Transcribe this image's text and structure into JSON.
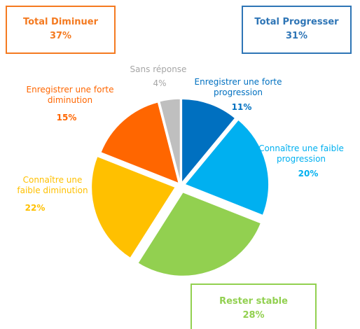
{
  "chart_data": {
    "type": "pie",
    "categories": [
      "Enregistrer une forte progression",
      "Connaître une faible progression",
      "Rester stable",
      "Connaître une faible diminution",
      "Enregistrer une forte diminution",
      "Sans réponse"
    ],
    "values": [
      11,
      20,
      28,
      22,
      15,
      4
    ],
    "value_labels": [
      "11%",
      "20%",
      "28%",
      "22%",
      "15%",
      "4%"
    ],
    "colors": [
      "#0070c0",
      "#00b0f0",
      "#92d050",
      "#ffc000",
      "#ff6600",
      "#bfbfbf"
    ],
    "annotations": [
      {
        "text": "Total Diminuer",
        "value": 37,
        "label": "37%",
        "color": "#f47a20"
      },
      {
        "text": "Total Progresser",
        "value": 31,
        "label": "31%",
        "color": "#2e75b6"
      }
    ]
  }
}
